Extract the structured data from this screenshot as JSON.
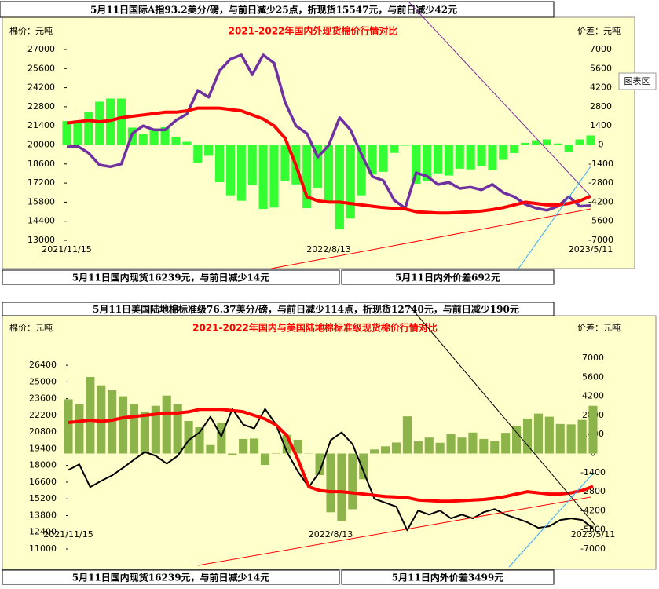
{
  "chart_data": [
    {
      "type": "combo",
      "title": "2021-2022年国内外现货棉价行情对比",
      "y_label": "棉价：元吨",
      "y2_label": "价差：元吨",
      "annotations": [
        "5月11日国际A指93.2美分/磅，与前日减少25点，折现货15547元，与前日减少42元",
        "5月11日国内现货16239元，与前日减少14元",
        "5月11日内外价差692元"
      ],
      "categories": [
        "2021/11/15",
        null,
        null,
        null,
        null,
        null,
        null,
        null,
        null,
        null,
        null,
        null,
        null,
        null,
        null,
        null,
        null,
        null,
        null,
        null,
        null,
        null,
        null,
        null,
        "2022/8/13",
        null,
        null,
        null,
        null,
        null,
        null,
        null,
        null,
        null,
        null,
        null,
        null,
        null,
        null,
        null,
        null,
        null,
        null,
        null,
        null,
        null,
        null,
        null,
        "2023/5/11"
      ],
      "ylim": [
        13000,
        27000
      ],
      "yticks": [
        13000,
        14400,
        15800,
        17200,
        18600,
        20000,
        21400,
        22800,
        24200,
        25600,
        27000
      ],
      "y2lim": [
        -7000,
        7000
      ],
      "y2ticks": [
        -7000,
        -5600,
        -4200,
        -2800,
        -1400,
        0,
        1400,
        2800,
        4200,
        5600,
        7000
      ],
      "series": [
        {
          "type": "bar",
          "axis": "y2",
          "color": "#33ff33",
          "values": [
            1750,
            1800,
            2400,
            3170,
            3400,
            3400,
            1270,
            800,
            1200,
            1300,
            600,
            230,
            -1300,
            -800,
            -2740,
            -3700,
            -4100,
            -2950,
            -4700,
            -4600,
            -2640,
            -2900,
            -4640,
            -3200,
            -4170,
            -6200,
            -5400,
            -3700,
            -2170,
            -1980,
            -590,
            -60,
            -2850,
            -2650,
            -2090,
            -2250,
            -1750,
            -1800,
            -1550,
            -1850,
            -1100,
            -600,
            150,
            340,
            400,
            100,
            -500,
            400,
            692
          ]
        },
        {
          "type": "line",
          "color": "#7030a0",
          "values": [
            19850,
            19900,
            19400,
            18530,
            18400,
            18600,
            20830,
            21400,
            21100,
            21100,
            21800,
            22270,
            24000,
            23500,
            25440,
            26300,
            26600,
            25150,
            26600,
            26000,
            23140,
            21400,
            20840,
            19100,
            19970,
            22000,
            21100,
            19300,
            17670,
            17380,
            15940,
            15360,
            17950,
            17700,
            17090,
            17250,
            16800,
            16900,
            16700,
            17100,
            16500,
            16200,
            15650,
            15360,
            15200,
            15500,
            16200,
            15500,
            15547
          ]
        },
        {
          "type": "line",
          "color": "#ff0000",
          "values": [
            21600,
            21700,
            21800,
            21700,
            21800,
            22000,
            22100,
            22200,
            22300,
            22400,
            22400,
            22500,
            22700,
            22700,
            22700,
            22600,
            22500,
            22200,
            21900,
            21400,
            20500,
            18500,
            16200,
            15900,
            15800,
            15800,
            15700,
            15600,
            15500,
            15400,
            15350,
            15300,
            15100,
            15050,
            15000,
            15000,
            15050,
            15100,
            15150,
            15250,
            15400,
            15600,
            15800,
            15700,
            15600,
            15600,
            15700,
            15900,
            16239
          ]
        }
      ]
    },
    {
      "type": "combo",
      "title": "2021-2022年国内与美国陆地棉标准级现货棉价行情对比",
      "y_label": "棉价：元吨",
      "y2_label": "价差：元吨",
      "annotations": [
        "5月11日美国陆地棉标准级76.37美分/磅，与前日减少114点，折现货12740元，与前日减少190元",
        "5月11日国内现货16239元，与前日减少14元",
        "5月11日内外价差3499元"
      ],
      "categories": [
        "2021/11/15",
        null,
        null,
        null,
        null,
        null,
        null,
        null,
        null,
        null,
        null,
        null,
        null,
        null,
        null,
        null,
        null,
        null,
        null,
        null,
        null,
        null,
        null,
        null,
        "2022/8/13",
        null,
        null,
        null,
        null,
        null,
        null,
        null,
        null,
        null,
        null,
        null,
        null,
        null,
        null,
        null,
        null,
        null,
        null,
        null,
        null,
        null,
        null,
        null,
        "2023/5/11"
      ],
      "ylim": [
        11000,
        27000
      ],
      "yticks": [
        11000,
        12400,
        13800,
        15200,
        16600,
        18000,
        19400,
        20800,
        22200,
        23600,
        25000,
        26400
      ],
      "y2lim": [
        -7000,
        7000
      ],
      "y2ticks": [
        -7000,
        -5600,
        -4200,
        -2800,
        -1400,
        0,
        1400,
        2800,
        4200,
        5600,
        7000
      ],
      "series": [
        {
          "type": "bar",
          "axis": "y2",
          "color": "#8db44a",
          "values": [
            3980,
            3600,
            5620,
            5000,
            4640,
            4200,
            3620,
            3070,
            3500,
            4250,
            3600,
            2390,
            1930,
            620,
            2260,
            -140,
            1070,
            1100,
            -840,
            -30,
            1370,
            1010,
            20,
            -1590,
            -4310,
            -4970,
            -4090,
            -1890,
            300,
            530,
            810,
            2730,
            890,
            1170,
            790,
            1440,
            1170,
            1540,
            1070,
            910,
            1520,
            2040,
            2570,
            2930,
            2700,
            2170,
            2140,
            2470,
            3499
          ]
        },
        {
          "type": "line",
          "color": "#000000",
          "values": [
            17620,
            18100,
            16180,
            16700,
            17160,
            17800,
            18480,
            19130,
            18800,
            18150,
            18800,
            20110,
            20770,
            22080,
            20440,
            22740,
            21430,
            21100,
            22740,
            21430,
            19130,
            17490,
            16180,
            17490,
            20110,
            20770,
            19790,
            17490,
            15200,
            14870,
            14540,
            12570,
            14210,
            13880,
            14210,
            13560,
            13880,
            13560,
            14080,
            14340,
            13880,
            13560,
            13230,
            12770,
            12900,
            13430,
            13560,
            13430,
            12740
          ]
        },
        {
          "type": "line",
          "color": "#ff0000",
          "values": [
            21600,
            21700,
            21800,
            21700,
            21800,
            22000,
            22100,
            22200,
            22300,
            22400,
            22400,
            22500,
            22700,
            22700,
            22700,
            22600,
            22500,
            22200,
            21900,
            21400,
            20500,
            18500,
            16200,
            15900,
            15800,
            15800,
            15700,
            15600,
            15500,
            15400,
            15350,
            15300,
            15100,
            15050,
            15000,
            15000,
            15050,
            15100,
            15150,
            15250,
            15400,
            15600,
            15800,
            15700,
            15600,
            15600,
            15700,
            15900,
            16239
          ]
        }
      ]
    }
  ],
  "tooltip": "图表区"
}
